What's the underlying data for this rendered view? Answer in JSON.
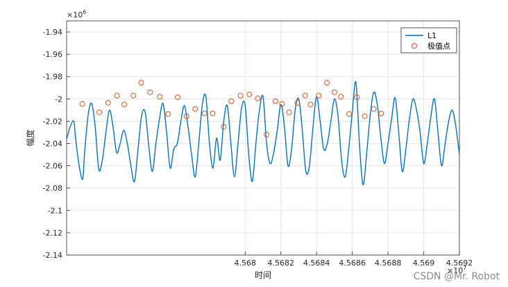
{
  "chart_data": {
    "type": "line",
    "title": "",
    "xlabel": "时间",
    "ylabel": "幅度",
    "xlim": [
      4.567,
      4.5692
    ],
    "ylim": [
      -2.14,
      -1.93
    ],
    "x_ticks": [
      4.568,
      4.5682,
      4.5684,
      4.5686,
      4.5688,
      4.569,
      4.5692
    ],
    "x_tick_labels": [
      "4.568",
      "4.5682",
      "4.5684",
      "4.5686",
      "4.5688",
      "4.569",
      "4.5692"
    ],
    "y_ticks": [
      -1.94,
      -1.96,
      -1.98,
      -2,
      -2.02,
      -2.04,
      -2.06,
      -2.08,
      -2.1,
      -2.12,
      -2.14
    ],
    "y_tick_labels": [
      "-1.94",
      "-1.96",
      "-1.98",
      "-2",
      "-2.02",
      "-2.04",
      "-2.06",
      "-2.08",
      "-2.1",
      "-2.12",
      "-2.14"
    ],
    "x_exponent": "×10",
    "x_exponent_power": "7",
    "y_exponent": "×10",
    "y_exponent_power": "6",
    "grid": true,
    "legend_position": "top-right",
    "series": [
      {
        "name": "L1",
        "color": "#0072BD",
        "x": [
          4.567,
          4.56702,
          4.56704,
          4.56705,
          4.56707,
          4.56709,
          4.5671,
          4.56712,
          4.56714,
          4.56716,
          4.56718,
          4.5672,
          4.56722,
          4.56724,
          4.56726,
          4.56728,
          4.5673,
          4.56732,
          4.56734,
          4.56736,
          4.56738,
          4.5674,
          4.56742,
          4.56744,
          4.56746,
          4.56748,
          4.5675,
          4.56752,
          4.56754,
          4.56756,
          4.56758,
          4.5676,
          4.56762,
          4.56764,
          4.56766,
          4.56768,
          4.5677,
          4.56772,
          4.56774,
          4.56776,
          4.56778,
          4.5678,
          4.56782,
          4.56784,
          4.56786,
          4.56788,
          4.5679,
          4.56792,
          4.56794,
          4.56796,
          4.56798,
          4.568,
          4.56802,
          4.56804,
          4.56806,
          4.56808,
          4.5681,
          4.56812,
          4.56814,
          4.56816,
          4.56818,
          4.5682,
          4.56822,
          4.56824,
          4.56826,
          4.56828,
          4.5683,
          4.56832,
          4.56834,
          4.56836,
          4.56838,
          4.5684,
          4.56842,
          4.56844,
          4.56846,
          4.56848,
          4.5685,
          4.56852,
          4.56854,
          4.56856,
          4.56858,
          4.5686,
          4.56862,
          4.56864,
          4.56866,
          4.56868,
          4.5687,
          4.56872,
          4.56874,
          4.56876,
          4.56878,
          4.5688,
          4.56882,
          4.56884,
          4.56886,
          4.56888,
          4.5689,
          4.56892,
          4.56894,
          4.56896,
          4.56898,
          4.569,
          4.56902,
          4.56904,
          4.56906,
          4.56908,
          4.5691,
          4.56912,
          4.56914,
          4.56916,
          4.56918,
          4.5692
        ],
        "y": [
          -2.036,
          -2.025,
          -2.02,
          -2.035,
          -2.06,
          -2.072,
          -2.05,
          -2.015,
          -2.004,
          -2.025,
          -2.063,
          -2.055,
          -2.03,
          -2.01,
          -2.025,
          -2.048,
          -2.04,
          -2.028,
          -2.04,
          -2.06,
          -2.074,
          -2.045,
          -2.015,
          -2.012,
          -2.042,
          -2.065,
          -2.04,
          -2.018,
          -2.004,
          -2.03,
          -2.062,
          -2.045,
          -2.04,
          -2.02,
          -2.006,
          -2.025,
          -2.05,
          -2.07,
          -2.04,
          -2.005,
          -1.998,
          -2.04,
          -2.062,
          -2.035,
          -2.055,
          -2.02,
          -2.006,
          -2.04,
          -2.07,
          -2.04,
          -2.008,
          -2.006,
          -2.05,
          -2.074,
          -2.04,
          -2.01,
          -1.998,
          -2.04,
          -2.058,
          -2.048,
          -2.028,
          -2.005,
          -2.025,
          -2.06,
          -2.045,
          -2.01,
          -2.0,
          -2.028,
          -2.065,
          -2.06,
          -2.025,
          -1.998,
          -2.02,
          -2.045,
          -2.04,
          -2.02,
          -2.0,
          -2.015,
          -2.055,
          -2.07,
          -2.045,
          -2.012,
          -1.985,
          -2.04,
          -2.077,
          -2.05,
          -2.015,
          -1.994,
          -2.005,
          -2.035,
          -2.058,
          -2.04,
          -2.018,
          -1.999,
          -2.03,
          -2.065,
          -2.045,
          -2.018,
          -2.0,
          -2.01,
          -2.03,
          -2.058,
          -2.04,
          -2.016,
          -2.0,
          -2.03,
          -2.06,
          -2.04,
          -2.02,
          -2.01,
          -2.025,
          -2.05
        ],
        "role": "signal"
      },
      {
        "name": "极值点",
        "color": "#D95319",
        "x": [
          4.567088,
          4.567183,
          4.567233,
          4.567282,
          4.567323,
          4.567374,
          4.567418,
          4.567468,
          4.567522,
          4.567568,
          4.567622,
          4.567672,
          4.56772,
          4.567772,
          4.567818,
          4.56788,
          4.567922,
          4.567974,
          4.568024,
          4.56807,
          4.56812,
          4.56817,
          4.568206,
          4.568246,
          4.568292,
          4.568336,
          4.568366,
          4.568412,
          4.568458,
          4.5685,
          4.568536,
          4.568582,
          4.568626,
          4.56867,
          4.56872,
          4.568762
        ],
        "y": [
          -2.0045,
          -2.012,
          -2.0035,
          -1.997,
          -2.005,
          -1.997,
          -1.9855,
          -1.994,
          -1.998,
          -2.0135,
          -1.9985,
          -2.0155,
          -2.009,
          -2.013,
          -2.013,
          -2.025,
          -2.002,
          -1.997,
          -1.996,
          -1.9995,
          -2.032,
          -2.002,
          -2.0045,
          -2.012,
          -2.0035,
          -1.997,
          -2.005,
          -1.997,
          -1.9855,
          -1.994,
          -1.998,
          -2.0135,
          -1.9985,
          -2.0155,
          -2.009,
          -2.013
        ],
        "marker": "circle",
        "role": "markers"
      }
    ]
  },
  "watermark": "CSDN @Mr. Robot"
}
